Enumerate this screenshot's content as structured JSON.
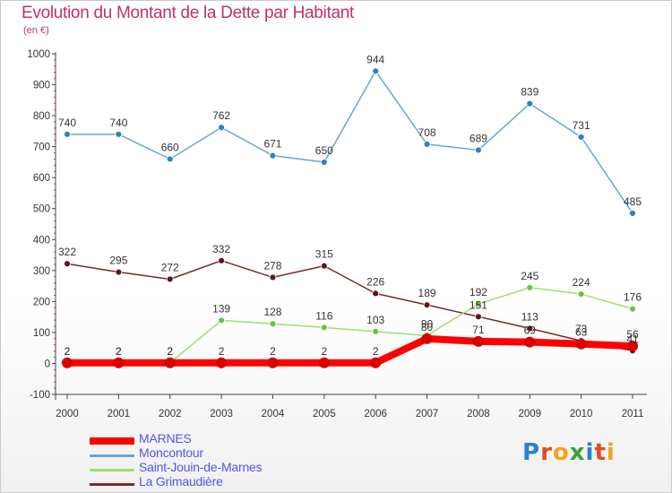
{
  "title": "Evolution du Montant de la Dette par Habitant",
  "subtitle": "(en €)",
  "logo": {
    "letters": [
      "P",
      "r",
      "o",
      "x",
      "i",
      "t",
      "i"
    ],
    "colors": [
      "#2a7fd4",
      "#e24b1c",
      "#f0a419",
      "#3aa03a",
      "#2a7fd4",
      "#e24b1c",
      "#f0a419"
    ]
  },
  "chart_data": {
    "type": "line",
    "title": "Evolution du Montant de la Dette par Habitant",
    "ylabel": "(en €)",
    "xlabel": "",
    "ylim": [
      -100,
      1000
    ],
    "yticks": [
      -100,
      0,
      100,
      200,
      300,
      400,
      500,
      600,
      700,
      800,
      900,
      1000
    ],
    "grid": false,
    "legend_position": "bottom-left",
    "x": [
      "2000",
      "2001",
      "2002",
      "2003",
      "2004",
      "2005",
      "2006",
      "2007",
      "2008",
      "2009",
      "2010",
      "2011"
    ],
    "series": [
      {
        "name": "MARNES",
        "color": "#ff0000",
        "marker": "#dd0000",
        "width": 8,
        "values": [
          2,
          2,
          2,
          2,
          2,
          2,
          2,
          80,
          71,
          69,
          63,
          56
        ],
        "labels": [
          "2",
          "2",
          "2",
          "2",
          "2",
          "2",
          "2",
          "80",
          "71",
          "69",
          "63",
          "56"
        ]
      },
      {
        "name": "Moncontour",
        "color": "#6aa4d6",
        "marker": "#2a82c8",
        "width": 1.5,
        "values": [
          740,
          740,
          660,
          762,
          671,
          650,
          944,
          708,
          689,
          839,
          731,
          485
        ],
        "labels": [
          "740",
          "740",
          "660",
          "762",
          "671",
          "650",
          "944",
          "708",
          "689",
          "839",
          "731",
          "485"
        ]
      },
      {
        "name": "Saint-Jouin-de-Marnes",
        "color": "#a0dd70",
        "marker": "#70c040",
        "width": 1.5,
        "values": [
          2,
          2,
          2,
          139,
          128,
          116,
          103,
          90,
          192,
          245,
          224,
          176
        ],
        "labels": [
          "2",
          "2",
          "2",
          "139",
          "128",
          "116",
          "103",
          "90",
          "192",
          "245",
          "224",
          "176"
        ]
      },
      {
        "name": "La Grimaudière",
        "color": "#7a2a2a",
        "marker": "#5a1818",
        "width": 1.5,
        "values": [
          322,
          295,
          272,
          332,
          278,
          315,
          226,
          189,
          151,
          113,
          73,
          41
        ],
        "labels": [
          "322",
          "295",
          "272",
          "332",
          "278",
          "315",
          "226",
          "189",
          "151",
          "113",
          "73",
          "41"
        ]
      }
    ]
  }
}
